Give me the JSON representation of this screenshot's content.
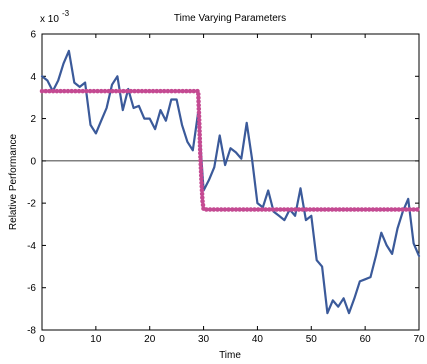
{
  "chart_data": {
    "type": "line",
    "title": "Time Varying Parameters",
    "xlabel": "Time",
    "ylabel": "Relative Performance",
    "y_exponent_label": "x 10",
    "y_exponent": "-3",
    "xlim": [
      0,
      70
    ],
    "ylim": [
      -8,
      6
    ],
    "xticks": [
      0,
      10,
      20,
      30,
      40,
      50,
      60,
      70
    ],
    "yticks": [
      -8,
      -6,
      -4,
      -2,
      0,
      2,
      4,
      6
    ],
    "grid": false,
    "zero_line": true,
    "series": [
      {
        "style": "line",
        "color": "#3b5a9a",
        "x": [
          0,
          1,
          2,
          3,
          4,
          5,
          6,
          7,
          8,
          9,
          10,
          11,
          12,
          13,
          14,
          15,
          16,
          17,
          18,
          19,
          20,
          21,
          22,
          23,
          24,
          25,
          26,
          27,
          28,
          29,
          30,
          31,
          32,
          33,
          34,
          35,
          36,
          37,
          38,
          39,
          40,
          41,
          42,
          43,
          44,
          45,
          46,
          47,
          48,
          49,
          50,
          51,
          52,
          53,
          54,
          55,
          56,
          57,
          58,
          59,
          60,
          61,
          62,
          63,
          64,
          65,
          66,
          67,
          68,
          69,
          70
        ],
        "y": [
          4.0,
          3.8,
          3.3,
          3.8,
          4.6,
          5.2,
          3.7,
          3.5,
          3.7,
          1.7,
          1.3,
          1.9,
          2.5,
          3.6,
          4.0,
          2.4,
          3.4,
          2.5,
          2.6,
          2.0,
          2.0,
          1.5,
          2.4,
          1.9,
          2.9,
          2.9,
          1.7,
          0.9,
          0.5,
          2.3,
          -1.4,
          -0.9,
          -0.3,
          1.2,
          -0.2,
          0.6,
          0.4,
          0.1,
          1.8,
          0.1,
          -2.0,
          -2.2,
          -1.4,
          -2.4,
          -2.6,
          -2.8,
          -2.3,
          -2.6,
          -1.3,
          -2.8,
          -2.6,
          -4.7,
          -5.0,
          -7.2,
          -6.6,
          -6.9,
          -6.5,
          -7.2,
          -6.5,
          -5.7,
          -5.6,
          -5.5,
          -4.5,
          -3.4,
          -4.0,
          -4.4,
          -3.2,
          -2.4,
          -1.8,
          -3.9,
          -4.5
        ]
      },
      {
        "style": "dotted-thick",
        "color": "#c44a92",
        "x": [
          0,
          1,
          2,
          3,
          4,
          5,
          6,
          7,
          8,
          9,
          10,
          11,
          12,
          13,
          14,
          15,
          16,
          17,
          18,
          19,
          20,
          21,
          22,
          23,
          24,
          25,
          26,
          27,
          28,
          29,
          29.2,
          29.4,
          29.6,
          29.8,
          30,
          30.5,
          31,
          32,
          33,
          34,
          35,
          36,
          37,
          38,
          39,
          40,
          41,
          42,
          43,
          44,
          45,
          46,
          47,
          48,
          49,
          50,
          51,
          52,
          53,
          54,
          55,
          56,
          57,
          58,
          59,
          60,
          61,
          62,
          63,
          64,
          65,
          66,
          67,
          68,
          69,
          70
        ],
        "y": [
          3.3,
          3.3,
          3.3,
          3.3,
          3.3,
          3.3,
          3.3,
          3.3,
          3.3,
          3.3,
          3.3,
          3.3,
          3.3,
          3.3,
          3.3,
          3.3,
          3.3,
          3.3,
          3.3,
          3.3,
          3.3,
          3.3,
          3.3,
          3.3,
          3.3,
          3.3,
          3.3,
          3.3,
          3.3,
          3.3,
          1.8,
          0.3,
          -0.9,
          -1.9,
          -2.3,
          -2.3,
          -2.3,
          -2.3,
          -2.3,
          -2.3,
          -2.3,
          -2.3,
          -2.3,
          -2.3,
          -2.3,
          -2.3,
          -2.3,
          -2.3,
          -2.3,
          -2.3,
          -2.3,
          -2.3,
          -2.3,
          -2.3,
          -2.3,
          -2.3,
          -2.3,
          -2.3,
          -2.3,
          -2.3,
          -2.3,
          -2.3,
          -2.3,
          -2.3,
          -2.3,
          -2.3,
          -2.3,
          -2.3,
          -2.3,
          -2.3,
          -2.3,
          -2.3,
          -2.3,
          -2.3,
          -2.3,
          -2.3
        ]
      }
    ]
  }
}
